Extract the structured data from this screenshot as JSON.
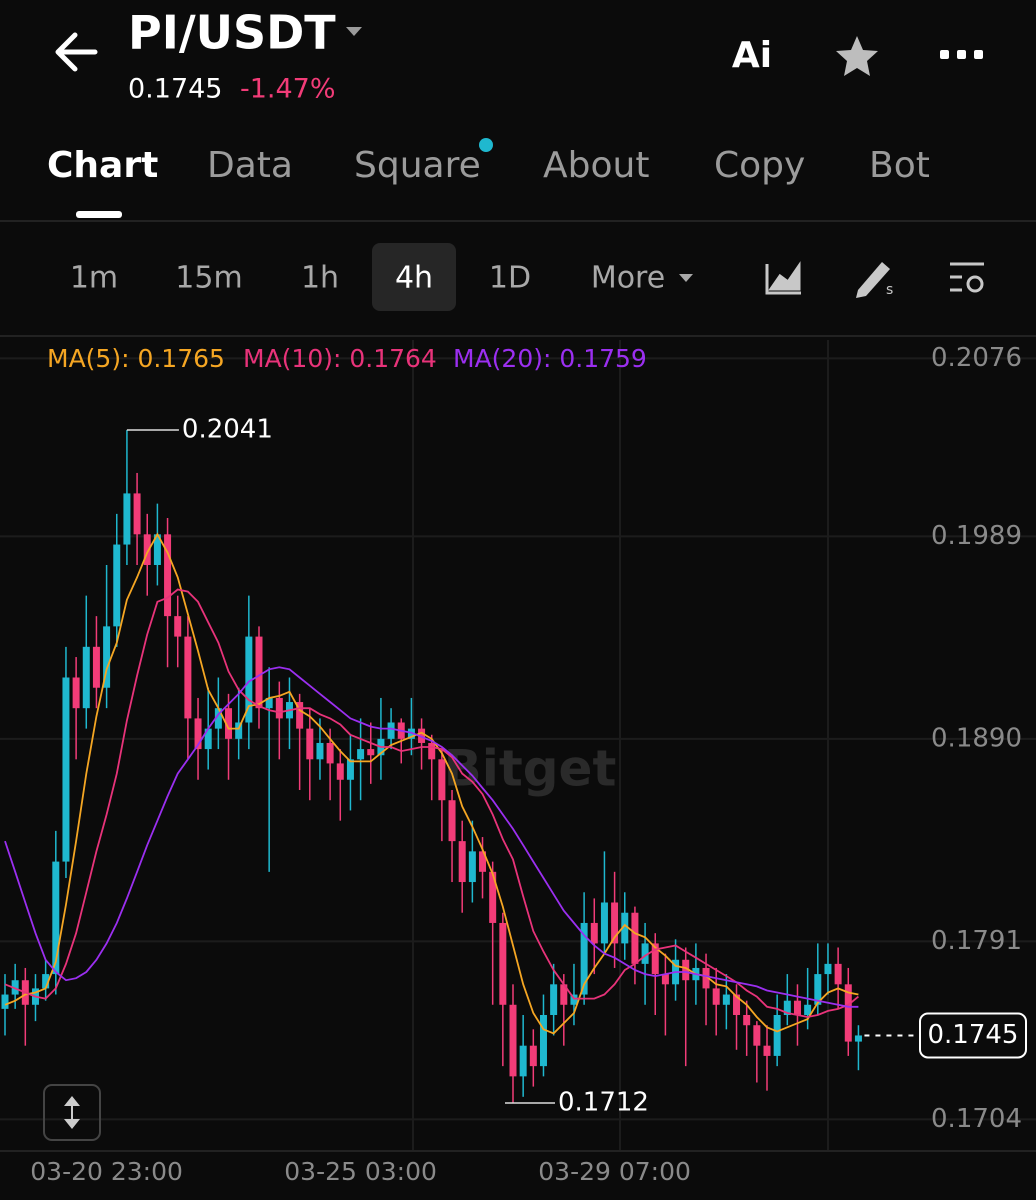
{
  "header": {
    "title": "PI/USDT",
    "price": "0.1745",
    "change": "-1.47%",
    "ai_icon": "Ai"
  },
  "tabs": [
    "Chart",
    "Data",
    "Square",
    "About",
    "Copy",
    "Bot"
  ],
  "intervals": [
    "1m",
    "15m",
    "1h",
    "4h",
    "1D",
    "More"
  ],
  "watermark": "Bitget",
  "chart_data": {
    "type": "candlestick",
    "categories": [
      null,
      null,
      null,
      null,
      null,
      null,
      null,
      null,
      null,
      null,
      "03-20 23:00",
      null,
      null,
      null,
      null,
      null,
      null,
      null,
      null,
      null,
      null,
      null,
      null,
      null,
      null,
      null,
      null,
      null,
      null,
      null,
      null,
      null,
      null,
      null,
      null,
      "03-25 03:00",
      null,
      null,
      null,
      null,
      null,
      null,
      null,
      null,
      null,
      null,
      null,
      null,
      null,
      null,
      null,
      null,
      null,
      null,
      null,
      null,
      null,
      null,
      null,
      null,
      "03-29 07:00",
      null,
      null,
      null,
      null,
      null,
      null,
      null,
      null,
      null,
      null,
      null,
      null,
      null,
      null,
      null,
      null,
      null,
      null,
      null,
      null,
      null,
      null,
      null,
      null
    ],
    "open": [
      0.1758,
      0.1765,
      0.1772,
      0.176,
      0.1768,
      0.1775,
      0.183,
      0.192,
      0.1905,
      0.1935,
      0.1915,
      0.1945,
      0.1985,
      0.201,
      0.199,
      0.1975,
      0.199,
      0.195,
      0.194,
      0.19,
      0.1885,
      0.1895,
      0.1905,
      0.189,
      0.1898,
      0.194,
      0.1905,
      0.191,
      0.19,
      0.1908,
      0.1895,
      0.188,
      0.1888,
      0.1878,
      0.187,
      0.188,
      0.1885,
      0.1882,
      0.189,
      0.1898,
      0.189,
      0.1895,
      0.1888,
      0.188,
      0.186,
      0.184,
      0.182,
      0.1835,
      0.1825,
      0.18,
      0.176,
      0.1725,
      0.174,
      0.173,
      0.1755,
      0.177,
      0.176,
      0.1765,
      0.18,
      0.179,
      0.181,
      0.179,
      0.1805,
      0.178,
      0.179,
      0.1775,
      0.177,
      0.1782,
      0.1772,
      0.1778,
      0.1768,
      0.176,
      0.1765,
      0.1755,
      0.175,
      0.174,
      0.1735,
      0.1755,
      0.1762,
      0.1755,
      0.176,
      0.1775,
      0.178,
      0.177,
      0.1742
    ],
    "high": [
      0.1775,
      0.178,
      0.1778,
      0.1775,
      0.1782,
      0.1845,
      0.1935,
      0.193,
      0.196,
      0.195,
      0.1975,
      0.2,
      0.2041,
      0.202,
      0.2,
      0.2005,
      0.1998,
      0.196,
      0.195,
      0.191,
      0.1915,
      0.192,
      0.1912,
      0.1915,
      0.196,
      0.1945,
      0.1925,
      0.1918,
      0.192,
      0.1912,
      0.1905,
      0.19,
      0.1895,
      0.1885,
      0.1892,
      0.19,
      0.1898,
      0.191,
      0.1905,
      0.19,
      0.191,
      0.19,
      0.1892,
      0.1885,
      0.1865,
      0.185,
      0.185,
      0.1842,
      0.183,
      0.1805,
      0.177,
      0.1755,
      0.1748,
      0.1765,
      0.178,
      0.1775,
      0.178,
      0.1815,
      0.1812,
      0.1835,
      0.1825,
      0.1815,
      0.1808,
      0.18,
      0.1795,
      0.1785,
      0.1792,
      0.1788,
      0.179,
      0.1785,
      0.1778,
      0.1775,
      0.177,
      0.1762,
      0.1752,
      0.175,
      0.1765,
      0.1775,
      0.177,
      0.1778,
      0.179,
      0.179,
      0.1788,
      0.1778,
      0.175
    ],
    "low": [
      0.1745,
      0.1758,
      0.174,
      0.1752,
      0.1762,
      0.1765,
      0.1822,
      0.188,
      0.1895,
      0.1905,
      0.1905,
      0.1935,
      0.1975,
      0.1975,
      0.196,
      0.1965,
      0.1925,
      0.1925,
      0.188,
      0.187,
      0.1875,
      0.1885,
      0.187,
      0.188,
      0.1885,
      0.1895,
      0.1825,
      0.188,
      0.1885,
      0.1865,
      0.186,
      0.187,
      0.186,
      0.185,
      0.1855,
      0.186,
      0.1868,
      0.187,
      0.1885,
      0.1878,
      0.1882,
      0.1875,
      0.186,
      0.184,
      0.182,
      0.1805,
      0.181,
      0.1812,
      0.176,
      0.173,
      0.1712,
      0.1715,
      0.172,
      0.1725,
      0.1745,
      0.174,
      0.175,
      0.176,
      0.1775,
      0.1785,
      0.1778,
      0.1782,
      0.177,
      0.176,
      0.1755,
      0.1745,
      0.1762,
      0.173,
      0.176,
      0.175,
      0.1745,
      0.1748,
      0.1738,
      0.1735,
      0.1722,
      0.1718,
      0.173,
      0.175,
      0.174,
      0.1748,
      0.1755,
      0.1765,
      0.1758,
      0.1735,
      0.1728
    ],
    "close": [
      0.1765,
      0.1772,
      0.176,
      0.1768,
      0.1775,
      0.183,
      0.192,
      0.1905,
      0.1935,
      0.1915,
      0.1945,
      0.1985,
      0.201,
      0.199,
      0.1975,
      0.199,
      0.195,
      0.194,
      0.19,
      0.1885,
      0.1895,
      0.1905,
      0.189,
      0.1898,
      0.194,
      0.1905,
      0.191,
      0.19,
      0.1908,
      0.1895,
      0.188,
      0.1888,
      0.1878,
      0.187,
      0.188,
      0.1885,
      0.1882,
      0.189,
      0.1898,
      0.189,
      0.1895,
      0.1888,
      0.188,
      0.186,
      0.184,
      0.182,
      0.1835,
      0.1825,
      0.18,
      0.176,
      0.1725,
      0.174,
      0.173,
      0.1755,
      0.177,
      0.176,
      0.1765,
      0.18,
      0.179,
      0.181,
      0.179,
      0.1805,
      0.178,
      0.179,
      0.1775,
      0.177,
      0.1782,
      0.1772,
      0.1778,
      0.1768,
      0.176,
      0.1765,
      0.1755,
      0.175,
      0.174,
      0.1735,
      0.1755,
      0.1762,
      0.1755,
      0.176,
      0.1775,
      0.178,
      0.177,
      0.1742,
      0.1745
    ],
    "up_color": "#1fb8cf",
    "down_color": "#f23c78",
    "series": [
      {
        "name": "MA(5): 0.1765",
        "color": "#f5a623",
        "values": [
          0.176,
          0.1762,
          0.1765,
          0.1766,
          0.1768,
          0.1781,
          0.1809,
          0.184,
          0.1873,
          0.1901,
          0.1924,
          0.1937,
          0.1958,
          0.1969,
          0.1981,
          0.199,
          0.1981,
          0.1969,
          0.1951,
          0.1933,
          0.1914,
          0.1905,
          0.1895,
          0.1895,
          0.1906,
          0.1907,
          0.191,
          0.1911,
          0.1913,
          0.1904,
          0.1901,
          0.1896,
          0.189,
          0.1884,
          0.1879,
          0.1879,
          0.1879,
          0.1883,
          0.1887,
          0.1889,
          0.1891,
          0.1893,
          0.189,
          0.1883,
          0.1873,
          0.1857,
          0.1847,
          0.1836,
          0.1824,
          0.1808,
          0.1789,
          0.177,
          0.1756,
          0.1748,
          0.1746,
          0.1751,
          0.1756,
          0.177,
          0.1778,
          0.1785,
          0.1793,
          0.1799,
          0.1795,
          0.1793,
          0.1788,
          0.1784,
          0.1779,
          0.1778,
          0.1775,
          0.1774,
          0.177,
          0.1769,
          0.1764,
          0.176,
          0.1754,
          0.1749,
          0.1747,
          0.1749,
          0.1751,
          0.1753,
          0.1761,
          0.1766,
          0.1768,
          0.1766,
          0.1765
        ]
      },
      {
        "name": "MA(10): 0.1764",
        "color": "#e8337a",
        "values": [
          0.177,
          0.1768,
          0.1766,
          0.1764,
          0.1763,
          0.1768,
          0.178,
          0.1795,
          0.1815,
          0.1835,
          0.1853,
          0.1873,
          0.1899,
          0.1921,
          0.1941,
          0.1957,
          0.1959,
          0.1963,
          0.1962,
          0.1957,
          0.1947,
          0.1937,
          0.1923,
          0.1914,
          0.1909,
          0.1906,
          0.1904,
          0.1903,
          0.1904,
          0.1905,
          0.1905,
          0.1902,
          0.19,
          0.1897,
          0.1892,
          0.189,
          0.1888,
          0.1886,
          0.1886,
          0.1884,
          0.1885,
          0.1886,
          0.1886,
          0.1885,
          0.1881,
          0.1873,
          0.1869,
          0.1863,
          0.1853,
          0.1841,
          0.1831,
          0.1813,
          0.1796,
          0.1786,
          0.1777,
          0.177,
          0.1763,
          0.1763,
          0.1763,
          0.1765,
          0.177,
          0.1777,
          0.178,
          0.1784,
          0.1787,
          0.1788,
          0.1789,
          0.1786,
          0.1783,
          0.178,
          0.1777,
          0.1774,
          0.1771,
          0.1767,
          0.1764,
          0.1759,
          0.1758,
          0.1756,
          0.1755,
          0.1754,
          0.1755,
          0.1757,
          0.1758,
          0.176,
          0.1764
        ]
      },
      {
        "name": "MA(20): 0.1759",
        "color": "#9b2ff0",
        "values": [
          0.184,
          0.1825,
          0.181,
          0.1795,
          0.1782,
          0.1776,
          0.1772,
          0.1773,
          0.1776,
          0.1782,
          0.179,
          0.18,
          0.1812,
          0.1825,
          0.1838,
          0.185,
          0.1862,
          0.1873,
          0.188,
          0.1887,
          0.1895,
          0.1902,
          0.1907,
          0.1912,
          0.1918,
          0.1921,
          0.1924,
          0.1925,
          0.1924,
          0.192,
          0.1916,
          0.1912,
          0.1908,
          0.1904,
          0.19,
          0.1898,
          0.1896,
          0.1895,
          0.1895,
          0.1894,
          0.1893,
          0.1891,
          0.1889,
          0.1886,
          0.1882,
          0.1877,
          0.1872,
          0.1866,
          0.186,
          0.1853,
          0.1846,
          0.1838,
          0.183,
          0.1822,
          0.1814,
          0.1806,
          0.18,
          0.1794,
          0.1789,
          0.1785,
          0.1783,
          0.178,
          0.1777,
          0.1775,
          0.1774,
          0.1775,
          0.1776,
          0.1776,
          0.1775,
          0.1774,
          0.1773,
          0.1772,
          0.1771,
          0.177,
          0.1769,
          0.1767,
          0.1766,
          0.1765,
          0.1764,
          0.1763,
          0.1762,
          0.1761,
          0.176,
          0.1759,
          0.1759
        ]
      }
    ],
    "ylim": [
      0.1689,
      0.2085
    ],
    "yticks": [
      0.2076,
      0.1989,
      {
        "value": 0.189,
        "label": "0.1890"
      },
      0.1791,
      0.1704
    ],
    "grid": true,
    "annotations": [
      "0.2041",
      "0.1712",
      "0.1745"
    ]
  }
}
